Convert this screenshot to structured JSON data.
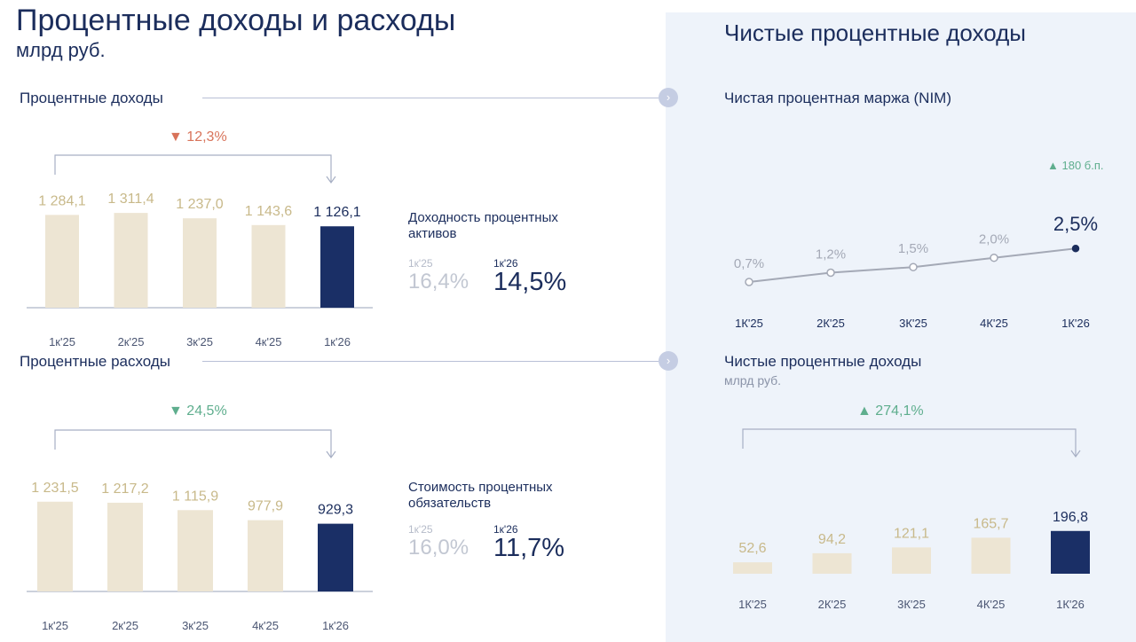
{
  "header": {
    "title": "Процентные доходы и расходы",
    "subtitle": "млрд руб.",
    "right_title": "Чистые процентные доходы"
  },
  "colors": {
    "navy": "#1a2f66",
    "beige": "#ede5d3",
    "beige_label": "#c8b98a",
    "red": "#d8735a",
    "green": "#5fae8e"
  },
  "icons": {
    "arrow": "chevron-right-icon"
  },
  "income": {
    "label": "Процентные доходы",
    "change": "12,3%",
    "change_direction": "down",
    "metric_title": "Доходность процентных активов",
    "metric_prev_label": "1к'25",
    "metric_prev_value": "16,4%",
    "metric_cur_label": "1к'26",
    "metric_cur_value": "14,5%"
  },
  "expense": {
    "label": "Процентные расходы",
    "change": "24,5%",
    "change_direction": "down",
    "metric_title": "Стоимость процентных обязательств",
    "metric_prev_label": "1к'25",
    "metric_prev_value": "16,0%",
    "metric_cur_label": "1к'26",
    "metric_cur_value": "11,7%"
  },
  "nim": {
    "label": "Чистая процентная маржа (NIM)",
    "change": "180 б.п.",
    "change_direction": "up"
  },
  "nii": {
    "label": "Чистые процентные доходы",
    "unit": "млрд руб.",
    "change": "274,1%",
    "change_direction": "up"
  },
  "chart_data": [
    {
      "id": "income",
      "type": "bar",
      "categories": [
        "1к'25",
        "2к'25",
        "3к'25",
        "4к'25",
        "1к'26"
      ],
      "values": [
        1284.1,
        1311.4,
        1237.0,
        1143.6,
        1126.1
      ],
      "labels": [
        "1 284,1",
        "1 311,4",
        "1 237,0",
        "1 143,6",
        "1 126,1"
      ],
      "ylim": [
        0,
        1400
      ],
      "highlight_last": true
    },
    {
      "id": "expense",
      "type": "bar",
      "categories": [
        "1к'25",
        "2к'25",
        "3к'25",
        "4к'25",
        "1к'26"
      ],
      "values": [
        1231.5,
        1217.2,
        1115.9,
        977.9,
        929.3
      ],
      "labels": [
        "1 231,5",
        "1 217,2",
        "1 115,9",
        "977,9",
        "929,3"
      ],
      "ylim": [
        0,
        1400
      ],
      "highlight_last": true
    },
    {
      "id": "nim",
      "type": "line",
      "categories": [
        "1К'25",
        "2К'25",
        "3К'25",
        "4К'25",
        "1К'26"
      ],
      "values": [
        0.7,
        1.2,
        1.5,
        2.0,
        2.5
      ],
      "labels": [
        "0,7%",
        "1,2%",
        "1,5%",
        "2,0%",
        "2,5%"
      ],
      "ylim": [
        0,
        3.5
      ]
    },
    {
      "id": "nii",
      "type": "bar",
      "categories": [
        "1К'25",
        "2К'25",
        "3К'25",
        "4К'25",
        "1К'26"
      ],
      "values": [
        52.6,
        94.2,
        121.1,
        165.7,
        196.8
      ],
      "labels": [
        "52,6",
        "94,2",
        "121,1",
        "165,7",
        "196,8"
      ],
      "ylim": [
        0,
        700
      ],
      "highlight_last": true
    }
  ]
}
